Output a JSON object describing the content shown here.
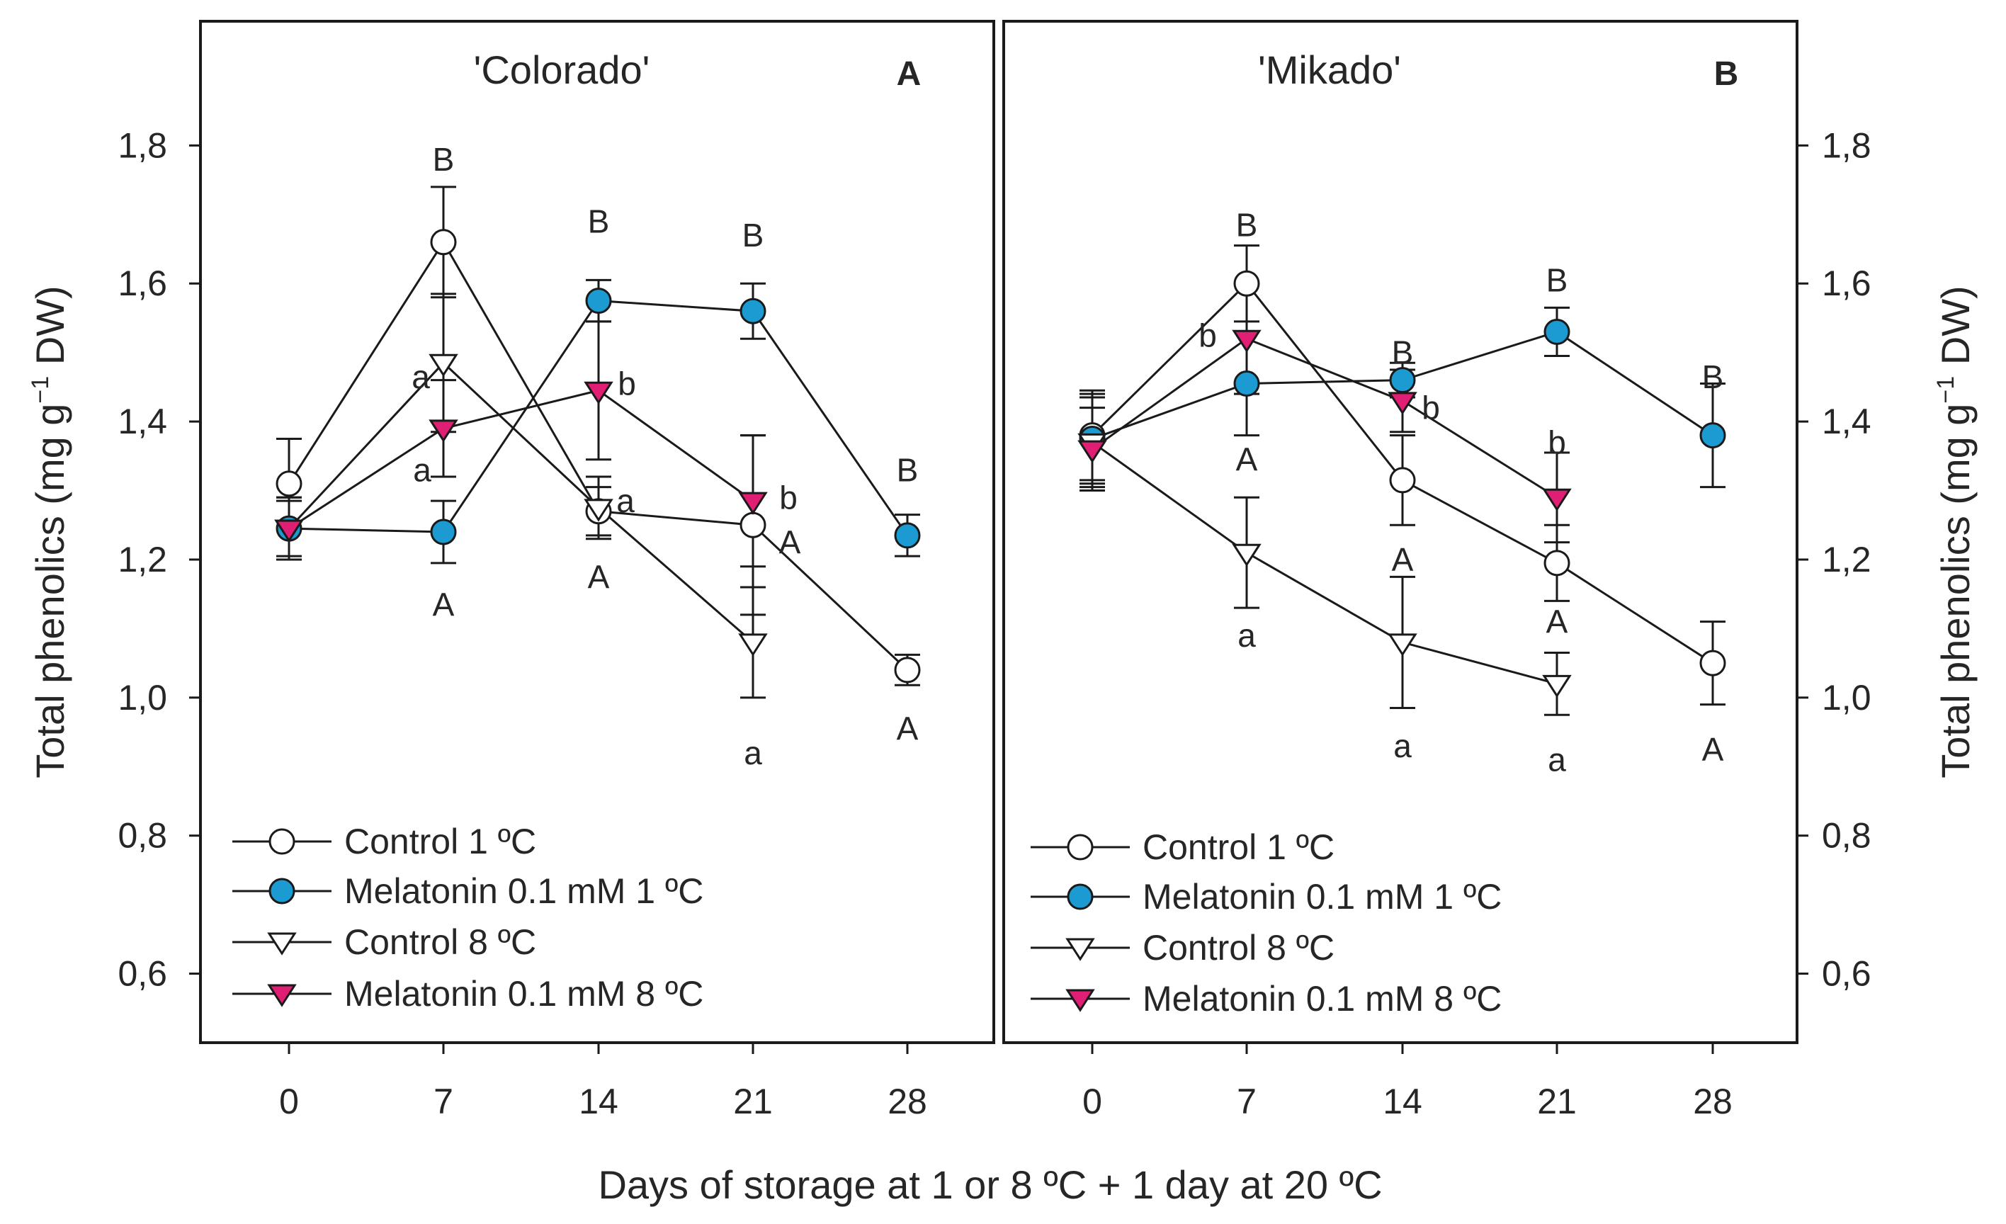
{
  "chart_data": {
    "type": "line",
    "xlabel": "Days of storage at 1 or 8 ºC + 1 day at 20 ºC",
    "ylabel_main": "Total phenolics (mg g",
    "ylabel_sup": "−1",
    "ylabel_tail": " DW)",
    "ylim": [
      0.5,
      1.98
    ],
    "yticks": [
      0.6,
      0.8,
      1.0,
      1.2,
      1.4,
      1.6,
      1.8
    ],
    "ytick_labels": [
      "0,6",
      "0,8",
      "1,0",
      "1,2",
      "1,4",
      "1,6",
      "1,8"
    ],
    "x": [
      0,
      7,
      14,
      21,
      28
    ],
    "xtick_labels": [
      "0",
      "7",
      "14",
      "21",
      "28"
    ],
    "colors": {
      "melatonin_1C": "#1b9bd1",
      "melatonin_8C": "#e01f74",
      "open": "#ffffff",
      "line": "#1a1a1a"
    },
    "legend": [
      {
        "name": "Control 1 ºC",
        "marker": "circle",
        "color": "#ffffff"
      },
      {
        "name": "Melatonin 0.1 mM 1 ºC",
        "marker": "circle",
        "color": "#1b9bd1"
      },
      {
        "name": "Control 8 ºC",
        "marker": "triangle-down",
        "color": "#ffffff"
      },
      {
        "name": "Melatonin 0.1 mM 8 ºC",
        "marker": "triangle-down",
        "color": "#e01f74"
      }
    ],
    "panels": [
      {
        "title": "'Colorado'",
        "letter": "A",
        "series": [
          {
            "name": "Control 1 ºC",
            "x": [
              0,
              7,
              14,
              21,
              28
            ],
            "values": [
              1.31,
              1.66,
              1.27,
              1.25,
              1.04
            ],
            "errors": [
              0.065,
              0.08,
              0.035,
              0.13,
              0.022
            ]
          },
          {
            "name": "Melatonin 0.1 mM 1 ºC",
            "x": [
              0,
              7,
              14,
              21,
              28
            ],
            "values": [
              1.245,
              1.24,
              1.575,
              1.56,
              1.235
            ],
            "errors": [
              0.045,
              0.045,
              0.03,
              0.04,
              0.03
            ]
          },
          {
            "name": "Control 8 ºC",
            "x": [
              0,
              7,
              14,
              21,
              28
            ],
            "values": [
              1.245,
              1.485,
              1.275,
              1.08,
              null
            ],
            "errors": [
              0.045,
              0.1,
              0.045,
              0.08,
              0
            ]
          },
          {
            "name": "Melatonin 0.1 mM 8 ºC",
            "x": [
              0,
              7,
              14,
              21,
              28
            ],
            "values": [
              1.245,
              1.39,
              1.445,
              1.285,
              null
            ],
            "errors": [
              0.04,
              0.07,
              0.1,
              0.095,
              0
            ]
          }
        ],
        "annotations": [
          {
            "x": 7,
            "y": 1.78,
            "text": "B"
          },
          {
            "x": 7,
            "y": 1.465,
            "text": "a",
            "dx": -32
          },
          {
            "x": 7,
            "y": 1.33,
            "text": "a",
            "dx": -30
          },
          {
            "x": 7,
            "y": 1.135,
            "text": "A"
          },
          {
            "x": 14,
            "y": 1.69,
            "text": "B"
          },
          {
            "x": 14,
            "y": 1.455,
            "text": "b",
            "dx": 40
          },
          {
            "x": 14,
            "y": 1.285,
            "text": "a",
            "dx": 38
          },
          {
            "x": 14,
            "y": 1.175,
            "text": "A"
          },
          {
            "x": 21,
            "y": 1.67,
            "text": "B"
          },
          {
            "x": 21,
            "y": 1.29,
            "text": "b",
            "dx": 50
          },
          {
            "x": 21,
            "y": 1.225,
            "text": "A",
            "dx": 52
          },
          {
            "x": 21,
            "y": 0.92,
            "text": "a"
          },
          {
            "x": 28,
            "y": 1.33,
            "text": "B"
          },
          {
            "x": 28,
            "y": 0.955,
            "text": "A"
          }
        ]
      },
      {
        "title": "'Mikado'",
        "letter": "B",
        "series": [
          {
            "name": "Control 1 ºC",
            "x": [
              0,
              7,
              14,
              21,
              28
            ],
            "values": [
              1.38,
              1.6,
              1.315,
              1.195,
              1.05
            ],
            "errors": [
              0.065,
              0.055,
              0.065,
              0.055,
              0.06
            ]
          },
          {
            "name": "Melatonin 0.1 mM 1 ºC",
            "x": [
              0,
              7,
              14,
              21,
              28
            ],
            "values": [
              1.375,
              1.455,
              1.46,
              1.53,
              1.38
            ],
            "errors": [
              0.065,
              0.075,
              0.025,
              0.035,
              0.075
            ]
          },
          {
            "name": "Control 8 ºC",
            "x": [
              0,
              7,
              14,
              21,
              28
            ],
            "values": [
              1.37,
              1.21,
              1.08,
              1.02,
              null
            ],
            "errors": [
              0.065,
              0.08,
              0.095,
              0.045,
              0
            ]
          },
          {
            "name": "Melatonin 0.1 mM 8 ºC",
            "x": [
              0,
              7,
              14,
              21,
              28
            ],
            "values": [
              1.36,
              1.52,
              1.43,
              1.29,
              null
            ],
            "errors": [
              0.06,
              0.08,
              0.045,
              0.065,
              0
            ]
          }
        ],
        "annotations": [
          {
            "x": 7,
            "y": 1.685,
            "text": "B"
          },
          {
            "x": 7,
            "y": 1.525,
            "text": "b",
            "dx": -55
          },
          {
            "x": 7,
            "y": 1.345,
            "text": "A"
          },
          {
            "x": 7,
            "y": 1.09,
            "text": "a"
          },
          {
            "x": 14,
            "y": 1.5,
            "text": "B"
          },
          {
            "x": 14,
            "y": 1.42,
            "text": "b",
            "dx": 40
          },
          {
            "x": 14,
            "y": 1.2,
            "text": "A"
          },
          {
            "x": 14,
            "y": 0.93,
            "text": "a"
          },
          {
            "x": 21,
            "y": 1.605,
            "text": "B"
          },
          {
            "x": 21,
            "y": 1.37,
            "text": "b"
          },
          {
            "x": 21,
            "y": 1.11,
            "text": "A"
          },
          {
            "x": 21,
            "y": 0.91,
            "text": "a"
          },
          {
            "x": 28,
            "y": 1.465,
            "text": "B"
          },
          {
            "x": 28,
            "y": 0.925,
            "text": "A"
          }
        ]
      }
    ]
  }
}
